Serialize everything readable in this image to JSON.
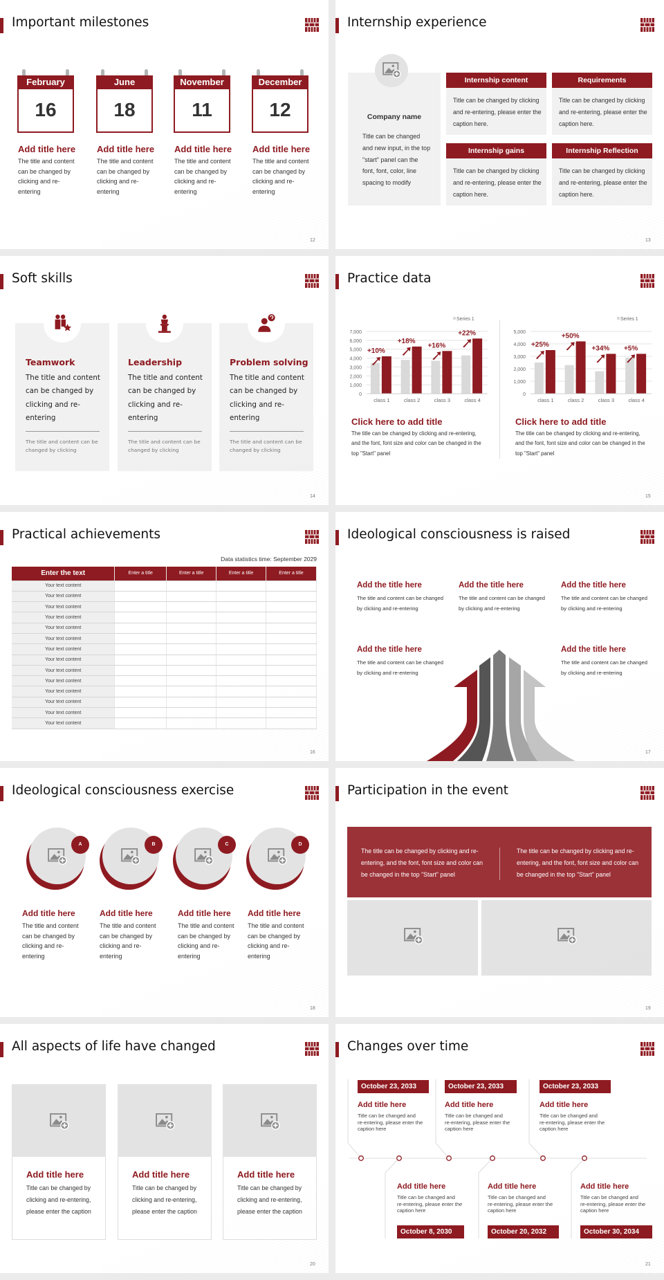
{
  "colors": {
    "accent": "#8e1b21",
    "panel": "#f1f1f1",
    "placeholder": "#e3e3e3",
    "bar_gray": "#d9d9d9"
  },
  "s12": {
    "title": "Important milestones",
    "page": "12",
    "items": [
      {
        "month": "February",
        "day": "16",
        "heading": "Add title here",
        "text": "The title and content can be changed by clicking and re-entering"
      },
      {
        "month": "June",
        "day": "18",
        "heading": "Add title here",
        "text": "The title and content can be changed by clicking and re-entering"
      },
      {
        "month": "November",
        "day": "11",
        "heading": "Add title here",
        "text": "The title and content can be changed by clicking and re-entering"
      },
      {
        "month": "December",
        "day": "12",
        "heading": "Add title here",
        "text": "The title and content can be changed by clicking and re-entering"
      }
    ]
  },
  "s13": {
    "title": "Internship experience",
    "page": "13",
    "company": "Company name",
    "company_text": "Title can be changed and new input, in the top \"start\" panel can the font, font, color, line spacing to modify",
    "boxes": [
      {
        "head": "Internship content",
        "text": "Title can be changed by clicking and re-entering, please enter the caption here."
      },
      {
        "head": "Requirements",
        "text": "Title can be changed by clicking and re-entering, please enter the caption here."
      },
      {
        "head": "Internship gains",
        "text": "Title can be changed by clicking and re-entering, please enter the caption here."
      },
      {
        "head": "Internship Reflection",
        "text": "Title can be changed by clicking and re-entering, please enter the caption here."
      }
    ]
  },
  "s14": {
    "title": "Soft skills",
    "page": "14",
    "cards": [
      {
        "icon": "teamwork-icon",
        "head": "Teamwork",
        "text": "The title and content can be changed by clicking and re-entering",
        "note": "The title and content can be changed by clicking"
      },
      {
        "icon": "podium-speaker-icon",
        "head": "Leadership",
        "text": "The title and content can be changed by clicking and re-entering",
        "note": "The title and content can be changed by clicking"
      },
      {
        "icon": "person-question-icon",
        "head": "Problem solving",
        "text": "The title and content can be changed by clicking and re-entering",
        "note": "The title and content can be changed by clicking"
      }
    ]
  },
  "s15": {
    "title": "Practice data",
    "page": "15",
    "captions": [
      {
        "head": "Click here to add title",
        "text": "The title can be changed by clicking and re-entering, and the font, font size and color can be changed in the top \"Start\" panel"
      },
      {
        "head": "Click here to add title",
        "text": "The title can be changed by clicking and re-entering, and the font, font size and color can be changed in the top \"Start\" panel"
      }
    ]
  },
  "chart_data": [
    {
      "type": "bar",
      "categories": [
        "class 1",
        "class 2",
        "class 3",
        "class 4"
      ],
      "ylim": [
        0,
        7000
      ],
      "yticks": [
        "0",
        "1,000",
        "2,000",
        "3,000",
        "4,000",
        "5,000",
        "6,000",
        "7,000"
      ],
      "grid": true,
      "legend": "top-right",
      "series": [
        {
          "name": "Series 1",
          "color": "#d9d9d9",
          "values": [
            3450,
            3800,
            3700,
            4300
          ]
        },
        {
          "color": "#8e1b21",
          "values": [
            4200,
            5300,
            4800,
            6200
          ]
        }
      ],
      "annotations": [
        "+10%",
        "+18%",
        "+16%",
        "+22%"
      ]
    },
    {
      "type": "bar",
      "categories": [
        "class 1",
        "class 2",
        "class 3",
        "class 4"
      ],
      "ylim": [
        0,
        5000
      ],
      "yticks": [
        "0",
        "1,000",
        "2,000",
        "3,000",
        "4,000",
        "5,000"
      ],
      "grid": true,
      "legend": "top-right",
      "series": [
        {
          "name": "Series 1",
          "color": "#d9d9d9",
          "values": [
            2500,
            2300,
            1800,
            2900
          ]
        },
        {
          "color": "#8e1b21",
          "values": [
            3500,
            4200,
            3200,
            3200
          ]
        }
      ],
      "annotations": [
        "+25%",
        "+50%",
        "+34%",
        "+5%"
      ]
    }
  ],
  "s16": {
    "title": "Practical achievements",
    "page": "16",
    "stat_time": "Data statistics time: September 2029",
    "headers": [
      "Enter the text",
      "Enter a title",
      "Enter a title",
      "Enter a title",
      "Enter a title"
    ],
    "rows": [
      "Your text content",
      "Your text content",
      "Your text content",
      "Your text content",
      "Your text content",
      "Your text content",
      "Your text content",
      "Your text content",
      "Your text content",
      "Your text content",
      "Your text content",
      "Your text content",
      "Your text content",
      "Your text content"
    ]
  },
  "s17": {
    "title": "Ideological consciousness is raised",
    "page": "17",
    "items": [
      {
        "head": "Add the title here",
        "text": "The title and content can be changed by clicking and re-entering"
      },
      {
        "head": "Add the title here",
        "text": "The title and content can be changed by clicking and re-entering"
      },
      {
        "head": "Add the title here",
        "text": "The title and content can be changed by clicking and re-entering"
      },
      {
        "head": "Add the title here",
        "text": "The title and content can be changed by clicking and re-entering"
      },
      {
        "head": "Add the title here",
        "text": "The title and content can be changed by clicking and re-entering"
      }
    ]
  },
  "s18": {
    "title": "Ideological consciousness exercise",
    "page": "18",
    "items": [
      {
        "badge": "A",
        "head": "Add title here",
        "text": "The title and content can be changed by clicking and re-entering"
      },
      {
        "badge": "B",
        "head": "Add title here",
        "text": "The title and content can be changed by clicking and re-entering"
      },
      {
        "badge": "C",
        "head": "Add title here",
        "text": "The title and content can be changed by clicking and re-entering"
      },
      {
        "badge": "D",
        "head": "Add title here",
        "text": "The title and content can be changed by clicking and re-entering"
      }
    ]
  },
  "s19": {
    "title": "Participation in the event",
    "page": "19",
    "texts": [
      "The title can be changed by clicking and re-entering, and the font, font size and color can be changed in the top \"Start\" panel",
      "The title can be changed by clicking and re-entering, and the font, font size and color can be changed in the top \"Start\" panel"
    ]
  },
  "s20": {
    "title": "All aspects of life have changed",
    "page": "20",
    "cards": [
      {
        "head": "Add title here",
        "text": "Title can be changed by clicking and re-entering, please enter the caption"
      },
      {
        "head": "Add title here",
        "text": "Title can be changed by clicking and re-entering, please enter the caption"
      },
      {
        "head": "Add title here",
        "text": "Title can be changed by clicking and re-entering, please enter the caption"
      }
    ]
  },
  "s21": {
    "title": "Changes over time",
    "page": "21",
    "events": [
      {
        "date": "October 23, 2033",
        "head": "Add title here",
        "text": "Title can be changed and re-entering, please enter the caption here"
      },
      {
        "date": "October 8, 2030",
        "head": "Add title here",
        "text": "Title can be changed and re-entering, please enter the caption here"
      },
      {
        "date": "October 23, 2033",
        "head": "Add title here",
        "text": "Title can be changed and re-entering, please enter the caption here"
      },
      {
        "date": "October 20, 2032",
        "head": "Add title here",
        "text": "Title can be changed and re-entering, please enter the caption here"
      },
      {
        "date": "October 23, 2033",
        "head": "Add title here",
        "text": "Title can be changed and re-entering, please enter the caption here"
      },
      {
        "date": "October 30, 2034",
        "head": "Add title here",
        "text": "Title can be changed and re-entering, please enter the caption here"
      }
    ]
  }
}
